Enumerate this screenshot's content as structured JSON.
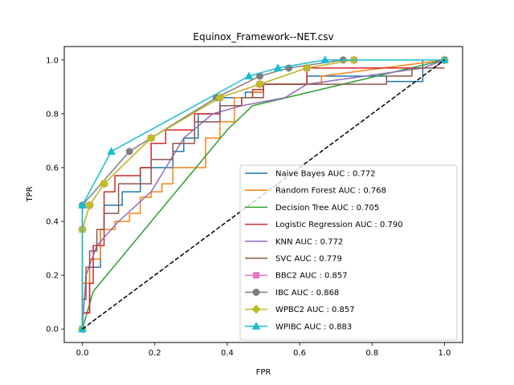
{
  "chart_data": {
    "type": "line",
    "title": "Equinox_Framework--NET.csv",
    "xlabel": "FPR",
    "ylabel": "TPR",
    "xlim": [
      -0.05,
      1.05
    ],
    "ylim": [
      -0.05,
      1.05
    ],
    "x_ticks": [
      "0.0",
      "0.2",
      "0.4",
      "0.6",
      "0.8",
      "1.0"
    ],
    "y_ticks": [
      "0.0",
      "0.2",
      "0.4",
      "0.6",
      "0.8",
      "1.0"
    ],
    "grid": false,
    "legend_position": "lower right",
    "diagonal": {
      "x": [
        0,
        1
      ],
      "y": [
        0,
        1
      ],
      "color": "#000000",
      "style": "dashed"
    },
    "series": [
      {
        "name": "Naive Bayes AUC : 0.772",
        "color": "#1f77b4",
        "marker": "none",
        "x": [
          0,
          0,
          0.02,
          0.02,
          0.05,
          0.05,
          0.06,
          0.06,
          0.11,
          0.11,
          0.16,
          0.16,
          0.25,
          0.25,
          0.28,
          0.28,
          0.32,
          0.32,
          0.38,
          0.38,
          0.45,
          0.45,
          0.5,
          0.5,
          0.62,
          0.62,
          0.84,
          0.84,
          0.94,
          0.94,
          1.0
        ],
        "y": [
          0,
          0.06,
          0.06,
          0.23,
          0.23,
          0.37,
          0.37,
          0.46,
          0.46,
          0.51,
          0.51,
          0.6,
          0.6,
          0.66,
          0.66,
          0.71,
          0.71,
          0.8,
          0.8,
          0.86,
          0.86,
          0.88,
          0.88,
          0.91,
          0.91,
          0.94,
          0.94,
          0.92,
          0.92,
          1.0,
          1.0
        ]
      },
      {
        "name": "Random Forest AUC : 0.768",
        "color": "#ff7f0e",
        "marker": "none",
        "x": [
          0,
          0,
          0.02,
          0.02,
          0.05,
          0.05,
          0.09,
          0.09,
          0.13,
          0.13,
          0.16,
          0.16,
          0.19,
          0.19,
          0.22,
          0.22,
          0.25,
          0.25,
          0.34,
          0.34,
          0.38,
          0.38,
          0.42,
          0.42,
          0.47,
          0.47,
          0.5,
          0.5,
          0.66,
          0.66,
          1.0
        ],
        "y": [
          0,
          0.17,
          0.17,
          0.26,
          0.26,
          0.37,
          0.37,
          0.4,
          0.4,
          0.43,
          0.43,
          0.49,
          0.49,
          0.51,
          0.51,
          0.54,
          0.54,
          0.6,
          0.6,
          0.71,
          0.71,
          0.77,
          0.77,
          0.86,
          0.86,
          0.88,
          0.88,
          0.91,
          0.91,
          0.94,
          1.0
        ]
      },
      {
        "name": "Decision Tree AUC : 0.705",
        "color": "#2ca02c",
        "marker": "none",
        "x": [
          0,
          0.03,
          0.4,
          0.47,
          1.0
        ],
        "y": [
          0,
          0.14,
          0.74,
          0.83,
          1.0
        ]
      },
      {
        "name": "Logistic Regression AUC : 0.790",
        "color": "#d62728",
        "marker": "none",
        "x": [
          0,
          0,
          0.02,
          0.02,
          0.03,
          0.03,
          0.06,
          0.06,
          0.09,
          0.09,
          0.16,
          0.16,
          0.19,
          0.19,
          0.23,
          0.23,
          0.31,
          0.31,
          0.38,
          0.38,
          0.44,
          0.44,
          0.47,
          0.47,
          0.5,
          0.5,
          0.62,
          0.62,
          0.97,
          1.0
        ],
        "y": [
          0,
          0.06,
          0.06,
          0.17,
          0.17,
          0.31,
          0.31,
          0.51,
          0.51,
          0.57,
          0.57,
          0.6,
          0.6,
          0.69,
          0.69,
          0.74,
          0.74,
          0.8,
          0.8,
          0.83,
          0.83,
          0.86,
          0.86,
          0.89,
          0.89,
          0.91,
          0.91,
          0.97,
          0.97,
          1.0
        ]
      },
      {
        "name": "KNN AUC : 0.772",
        "color": "#9467bd",
        "marker": "none",
        "x": [
          0,
          0.01,
          0.04,
          0.1,
          0.19,
          0.28,
          0.36,
          0.44,
          0.56,
          0.62,
          0.94,
          1.0
        ],
        "y": [
          0,
          0.2,
          0.31,
          0.4,
          0.51,
          0.71,
          0.8,
          0.83,
          0.86,
          0.91,
          0.97,
          1.0
        ]
      },
      {
        "name": "SVC AUC : 0.779",
        "color": "#8c564b",
        "marker": "none",
        "x": [
          0,
          0,
          0.01,
          0.01,
          0.02,
          0.02,
          0.04,
          0.04,
          0.06,
          0.06,
          0.1,
          0.1,
          0.19,
          0.19,
          0.25,
          0.25,
          0.31,
          0.31,
          0.38,
          0.38,
          0.44,
          0.44,
          0.5,
          0.5,
          0.84,
          0.84,
          0.91,
          0.91,
          1.0
        ],
        "y": [
          0,
          0.11,
          0.11,
          0.23,
          0.23,
          0.29,
          0.29,
          0.37,
          0.37,
          0.43,
          0.43,
          0.54,
          0.54,
          0.63,
          0.63,
          0.69,
          0.69,
          0.77,
          0.77,
          0.83,
          0.83,
          0.86,
          0.86,
          0.91,
          0.91,
          0.94,
          0.94,
          0.97,
          0.97
        ]
      },
      {
        "name": "BBC2 AUC : 0.857",
        "color": "#e377c2",
        "marker": "square",
        "x": [
          0,
          0,
          0.02,
          0.06,
          0.19,
          0.38,
          0.49,
          0.62,
          0.75,
          1.0
        ],
        "y": [
          0,
          0.37,
          0.46,
          0.54,
          0.71,
          0.86,
          0.91,
          0.97,
          1.0,
          1.0
        ]
      },
      {
        "name": "IBC AUC : 0.868",
        "color": "#7f7f7f",
        "marker": "circle",
        "x": [
          0,
          0,
          0.13,
          0.37,
          0.49,
          0.57,
          0.72,
          1.0
        ],
        "y": [
          0,
          0.46,
          0.66,
          0.86,
          0.94,
          0.97,
          1.0,
          1.0
        ]
      },
      {
        "name": "WPBC2 AUC : 0.857",
        "color": "#bcbd22",
        "marker": "diamond",
        "x": [
          0,
          0,
          0.02,
          0.06,
          0.19,
          0.38,
          0.49,
          0.62,
          0.75,
          1.0
        ],
        "y": [
          0,
          0.37,
          0.46,
          0.54,
          0.71,
          0.86,
          0.91,
          0.97,
          1.0,
          1.0
        ]
      },
      {
        "name": "WPIBC AUC : 0.883",
        "color": "#17becf",
        "marker": "triangle",
        "x": [
          0,
          0,
          0.08,
          0.46,
          0.54,
          0.67,
          1.0
        ],
        "y": [
          0,
          0.46,
          0.66,
          0.94,
          0.97,
          1.0,
          1.0
        ]
      }
    ]
  }
}
